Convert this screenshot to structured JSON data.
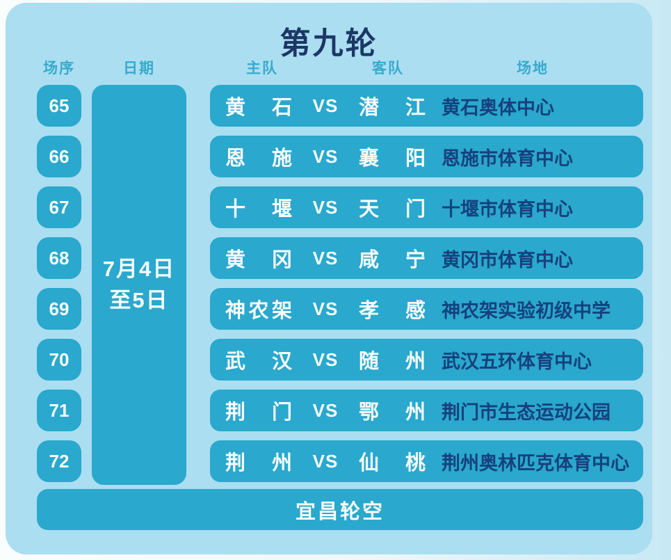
{
  "title": "第九轮",
  "columns": {
    "order": "场序",
    "date": "日期",
    "home": "主队",
    "away": "客队",
    "venue": "场地"
  },
  "date": {
    "line1": "7月4日",
    "line2": "至5日"
  },
  "vs_label": "VS",
  "matches": [
    {
      "no": "65",
      "home": "黄石",
      "away": "潜江",
      "venue": "黄石奥体中心"
    },
    {
      "no": "66",
      "home": "恩施",
      "away": "襄阳",
      "venue": "恩施市体育中心"
    },
    {
      "no": "67",
      "home": "十堰",
      "away": "天门",
      "venue": "十堰市体育中心"
    },
    {
      "no": "68",
      "home": "黄冈",
      "away": "咸宁",
      "venue": "黄冈市体育中心"
    },
    {
      "no": "69",
      "home": "神农架",
      "away": "孝感",
      "venue": "神农架实验初级中学"
    },
    {
      "no": "70",
      "home": "武汉",
      "away": "随州",
      "venue": "武汉五环体育中心"
    },
    {
      "no": "71",
      "home": "荆门",
      "away": "鄂州",
      "venue": "荆门市生态运动公园"
    },
    {
      "no": "72",
      "home": "荆州",
      "away": "仙桃",
      "venue": "荆州奥林匹克体育中心"
    }
  ],
  "footer": {
    "bye": "宜昌轮空"
  },
  "colors": {
    "panel_background": "#aadef0",
    "box_teal": "#2aa8cd",
    "title_navy": "#1c3766",
    "venue_navy": "#15417e",
    "header_teal": "#39a9cc",
    "box_text_white": "#f8feff"
  }
}
